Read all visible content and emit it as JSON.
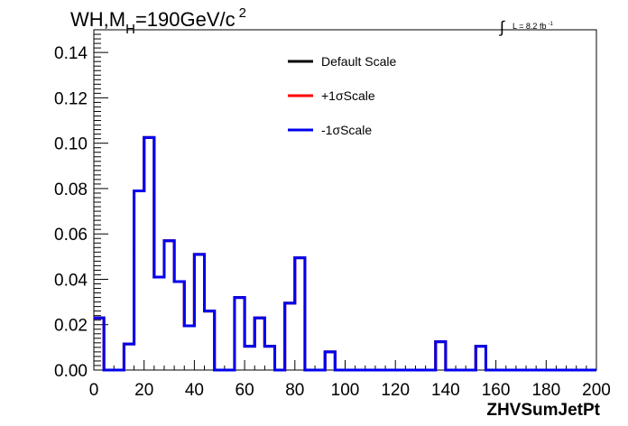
{
  "chart_data": {
    "type": "line",
    "title_parts": [
      "WH,M",
      "H",
      "=190GeV/c",
      "2"
    ],
    "lumi_parts": [
      "L = 8.2 fb",
      "-1"
    ],
    "lumi_symbol": "∫",
    "xlabel": "ZHVSumJetPt",
    "xlim": [
      0,
      200
    ],
    "ylim": [
      0,
      0.15
    ],
    "x_ticks": [
      "0",
      "20",
      "40",
      "60",
      "80",
      "100",
      "120",
      "140",
      "160",
      "180",
      "200"
    ],
    "y_ticks": [
      "0.00",
      "0.02",
      "0.04",
      "0.06",
      "0.08",
      "0.10",
      "0.12",
      "0.14"
    ],
    "bin_width": 4,
    "bin_start": 0,
    "series": [
      {
        "name": "Default Scale",
        "color": "#000000",
        "values": [
          0.023,
          0,
          0,
          0.0115,
          0.079,
          0.1025,
          0.041,
          0.057,
          0.039,
          0.0195,
          0.051,
          0.026,
          0,
          0,
          0.032,
          0.0105,
          0.023,
          0.0105,
          0,
          0.0295,
          0.0495,
          0,
          0,
          0.008,
          0,
          0,
          0,
          0,
          0,
          0,
          0,
          0,
          0,
          0,
          0.0125,
          0,
          0,
          0,
          0.0105,
          0,
          0,
          0,
          0,
          0,
          0,
          0,
          0,
          0,
          0,
          0
        ]
      },
      {
        "name": "+1σScale",
        "color": "#ff0000",
        "values": [
          0.023,
          0,
          0,
          0.0115,
          0.079,
          0.1025,
          0.041,
          0.057,
          0.039,
          0.0195,
          0.051,
          0.026,
          0,
          0,
          0.032,
          0.0105,
          0.023,
          0.0105,
          0,
          0.0295,
          0.0495,
          0,
          0,
          0.008,
          0,
          0,
          0,
          0,
          0,
          0,
          0,
          0,
          0,
          0,
          0.0125,
          0,
          0,
          0,
          0.0105,
          0,
          0,
          0,
          0,
          0,
          0,
          0,
          0,
          0,
          0,
          0
        ]
      },
      {
        "name": "-1σScale",
        "color": "#0000ee",
        "values": [
          0.023,
          0,
          0,
          0.0115,
          0.079,
          0.1025,
          0.041,
          0.057,
          0.039,
          0.0195,
          0.051,
          0.026,
          0,
          0,
          0.032,
          0.0105,
          0.023,
          0.0105,
          0,
          0.0295,
          0.0495,
          0,
          0,
          0.008,
          0,
          0,
          0,
          0,
          0,
          0,
          0,
          0,
          0,
          0,
          0.0125,
          0,
          0,
          0,
          0.0105,
          0,
          0,
          0,
          0,
          0,
          0,
          0,
          0,
          0,
          0,
          0
        ]
      }
    ]
  }
}
